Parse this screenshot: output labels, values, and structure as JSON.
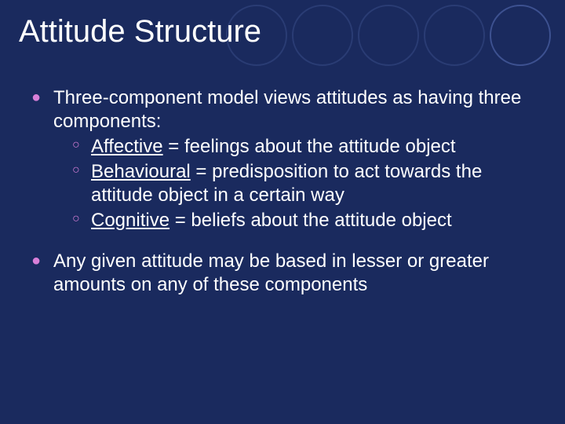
{
  "slide": {
    "background_color": "#1a2a5e",
    "text_color": "#ffffff",
    "accent_color": "#d87fd8",
    "font_family": "Comic Sans MS",
    "title": {
      "text": "Attitude Structure",
      "fontsize": 40,
      "color": "#ffffff"
    },
    "ornament_circles": {
      "count": 5,
      "diameter": 78,
      "gap": 6,
      "border_width": 2,
      "border_colors": [
        "#2a3c74",
        "#2a3c74",
        "#2a3c74",
        "#2a3c74",
        "#3d5190"
      ]
    },
    "body": {
      "fontsize": 24,
      "items": [
        {
          "lead": "Three-component model views attitudes as having three components:",
          "subitems": [
            {
              "term": "Affective",
              "term_first_letter_underlined": true,
              "def": " = feelings about the attitude object"
            },
            {
              "term": "Behavioural",
              "term_first_letter_underlined": true,
              "def": " = predisposition to act towards the attitude object in a certain way"
            },
            {
              "term": "Cognitive",
              "term_first_letter_underlined": true,
              "def": " = beliefs about the attitude object"
            }
          ]
        },
        {
          "lead": "Any given attitude may be based in lesser or greater amounts on any of these components",
          "subitems": []
        }
      ]
    }
  }
}
